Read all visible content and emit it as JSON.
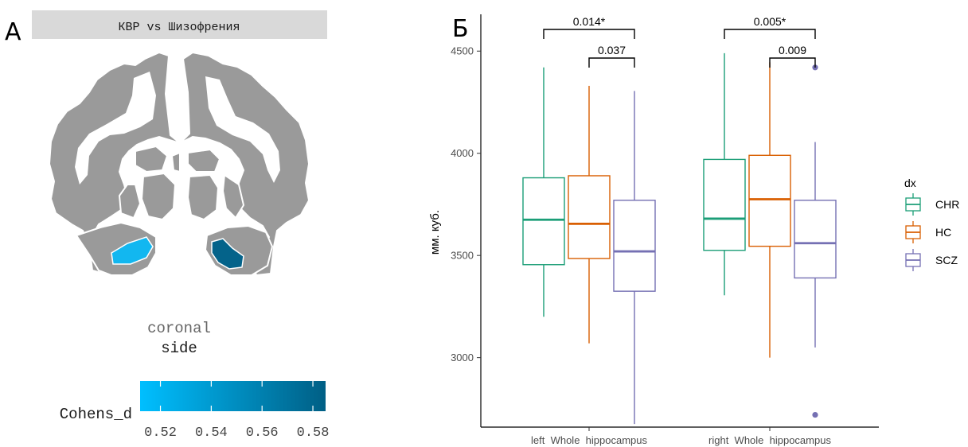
{
  "panel_a": {
    "label": "А",
    "title": "КВР vs Шизофрения",
    "view_line1": "coronal",
    "view_line2": "side",
    "colorbar": {
      "title": "Cohens_d",
      "ticks": [
        "0.52",
        "0.54",
        "0.56",
        "0.58"
      ],
      "tick_values": [
        0.52,
        0.54,
        0.56,
        0.58
      ],
      "range": [
        0.512,
        0.585
      ],
      "color_low": "#00bfff",
      "color_high": "#005f85"
    },
    "brain_color": "#9a9a9a",
    "highlight_left": "#12b7f0",
    "highlight_right": "#04638a"
  },
  "panel_b": {
    "label": "Б",
    "ylabel": "мм. куб.",
    "legend_title": "dx"
  },
  "chart_data": {
    "type": "box",
    "categories": [
      "left  Whole  hippocampus",
      "right  Whole  hippocampus"
    ],
    "yticks": [
      3000,
      3500,
      4000,
      4500
    ],
    "ylim": [
      2660,
      4680
    ],
    "legend_position": "right",
    "grid": false,
    "series": [
      {
        "name": "CHR",
        "color": "#1b9e77",
        "boxes": [
          {
            "min": 3200,
            "q1": 3455,
            "median": 3675,
            "q3": 3880,
            "max": 4420,
            "outliers": []
          },
          {
            "min": 3305,
            "q1": 3525,
            "median": 3680,
            "q3": 3970,
            "max": 4490,
            "outliers": []
          }
        ]
      },
      {
        "name": "HC",
        "color": "#d95f02",
        "boxes": [
          {
            "min": 3070,
            "q1": 3485,
            "median": 3655,
            "q3": 3890,
            "max": 4330,
            "outliers": []
          },
          {
            "min": 3000,
            "q1": 3545,
            "median": 3775,
            "q3": 3990,
            "max": 4445,
            "outliers": []
          }
        ]
      },
      {
        "name": "SCZ",
        "color": "#7570b3",
        "boxes": [
          {
            "min": 2675,
            "q1": 3325,
            "median": 3520,
            "q3": 3770,
            "max": 4305,
            "outliers": []
          },
          {
            "min": 3050,
            "q1": 3390,
            "median": 3560,
            "q3": 3770,
            "max": 4055,
            "outliers": [
              4420,
              2720
            ]
          }
        ]
      }
    ],
    "annotations": [
      {
        "label": "0.014*",
        "category": 0,
        "from": "CHR",
        "to": "SCZ",
        "level": 2
      },
      {
        "label": "0.037",
        "category": 0,
        "from": "HC",
        "to": "SCZ",
        "level": 1
      },
      {
        "label": "0.005*",
        "category": 1,
        "from": "CHR",
        "to": "SCZ",
        "level": 2
      },
      {
        "label": "0.009",
        "category": 1,
        "from": "HC",
        "to": "SCZ",
        "level": 1
      }
    ]
  }
}
